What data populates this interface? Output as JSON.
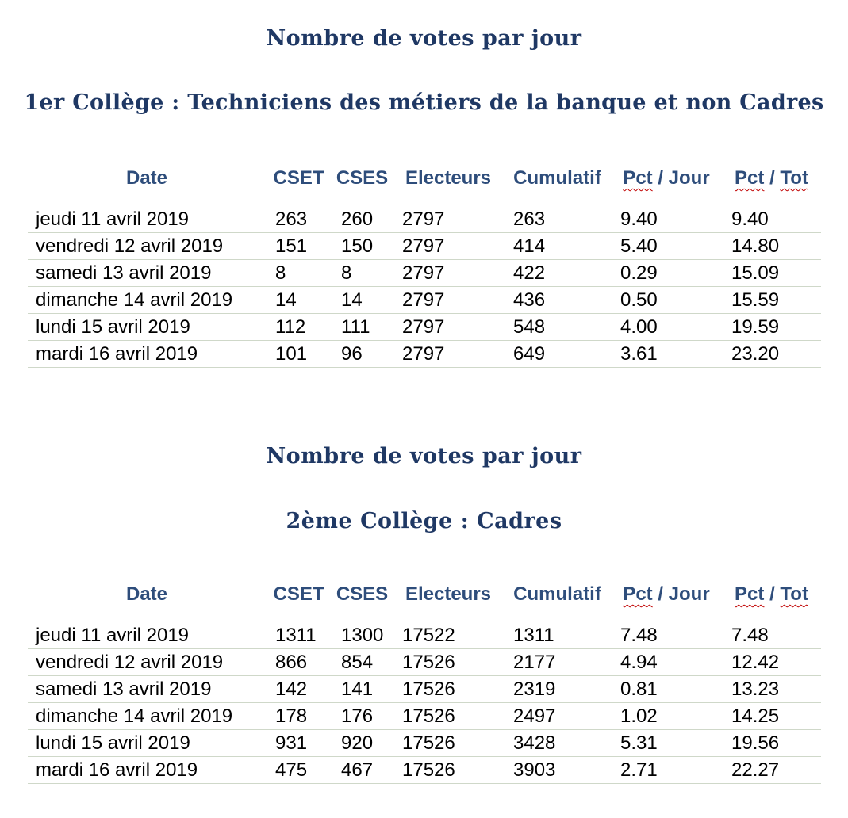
{
  "colors": {
    "title_navy": "#1f3864",
    "header_navy": "#2e4d7b",
    "row_divider": "#cfd8c9",
    "spellcheck_squiggle_red": "#c00000",
    "data_text": "#000000",
    "background": "#ffffff"
  },
  "sections": [
    {
      "title": "Nombre de votes par jour",
      "subtitle": "1er Collège : Techniciens des métiers de la banque et non Cadres",
      "table": {
        "header": {
          "date": "Date",
          "cset": "CSET",
          "cses": "CSES",
          "electeurs": "Electeurs",
          "cumulatif": "Cumulatif",
          "pct": "Pct",
          "jour_suffix": " / Jour",
          "tot_sep": " / ",
          "tot": "Tot"
        },
        "rows": [
          [
            "jeudi 11 avril 2019",
            "263",
            "260",
            "2797",
            "263",
            "9.40",
            "9.40"
          ],
          [
            "vendredi 12 avril 2019",
            "151",
            "150",
            "2797",
            "414",
            "5.40",
            "14.80"
          ],
          [
            "samedi 13 avril 2019",
            "8",
            "8",
            "2797",
            "422",
            "0.29",
            "15.09"
          ],
          [
            "dimanche 14 avril 2019",
            "14",
            "14",
            "2797",
            "436",
            "0.50",
            "15.59"
          ],
          [
            "lundi 15 avril 2019",
            "112",
            "111",
            "2797",
            "548",
            "4.00",
            "19.59"
          ],
          [
            "mardi 16 avril 2019",
            "101",
            "96",
            "2797",
            "649",
            "3.61",
            "23.20"
          ]
        ]
      }
    },
    {
      "title": "Nombre de votes par jour",
      "subtitle": "2ème Collège : Cadres",
      "table": {
        "header": {
          "date": "Date",
          "cset": "CSET",
          "cses": "CSES",
          "electeurs": "Electeurs",
          "cumulatif": "Cumulatif",
          "pct": "Pct",
          "jour_suffix": " / Jour",
          "tot_sep": " / ",
          "tot": "Tot"
        },
        "rows": [
          [
            "jeudi 11 avril 2019",
            "1311",
            "1300",
            "17522",
            "1311",
            "7.48",
            "7.48"
          ],
          [
            "vendredi 12 avril 2019",
            "866",
            "854",
            "17526",
            "2177",
            "4.94",
            "12.42"
          ],
          [
            "samedi 13 avril 2019",
            "142",
            "141",
            "17526",
            "2319",
            "0.81",
            "13.23"
          ],
          [
            "dimanche 14 avril 2019",
            "178",
            "176",
            "17526",
            "2497",
            "1.02",
            "14.25"
          ],
          [
            "lundi 15 avril 2019",
            "931",
            "920",
            "17526",
            "3428",
            "5.31",
            "19.56"
          ],
          [
            "mardi 16 avril 2019",
            "475",
            "467",
            "17526",
            "3903",
            "2.71",
            "22.27"
          ]
        ]
      }
    }
  ]
}
